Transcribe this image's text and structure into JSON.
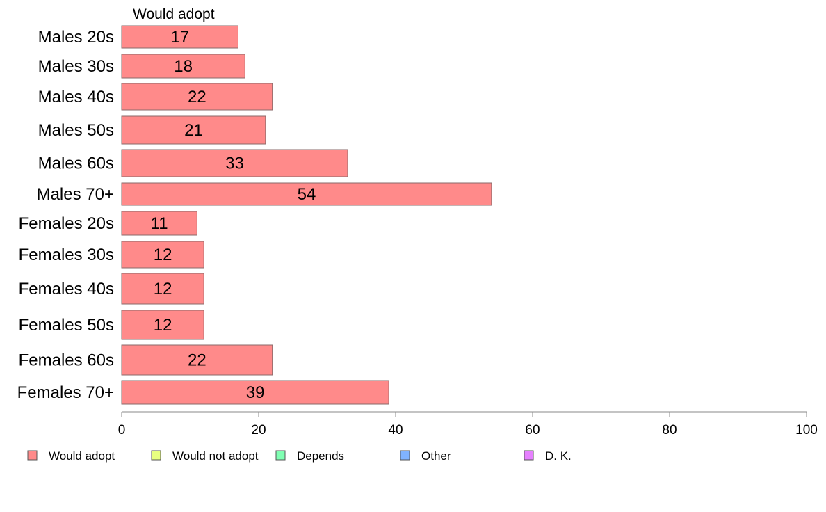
{
  "chart_data": {
    "type": "bar",
    "orientation": "horizontal",
    "title": "",
    "xlabel": "",
    "ylabel": "",
    "xlim": [
      0,
      100
    ],
    "xticks": [
      0,
      20,
      40,
      60,
      80,
      100
    ],
    "grid": false,
    "legend_position": "bottom",
    "series_header": "Would adopt",
    "categories": [
      "Males 20s",
      "Males 30s",
      "Males 40s",
      "Males 50s",
      "Males 60s",
      "Males 70+",
      "Females 20s",
      "Females 30s",
      "Females 40s",
      "Females 50s",
      "Females 60s",
      "Females 70+"
    ],
    "series": [
      {
        "name": "Would adopt",
        "color": "#ff8a8a",
        "values": [
          17,
          18,
          22,
          21,
          33,
          54,
          11,
          12,
          12,
          12,
          22,
          39
        ]
      }
    ],
    "legend": [
      {
        "label": "Would adopt",
        "color": "#ff8a8a"
      },
      {
        "label": "Would not adopt",
        "color": "#e8ff80"
      },
      {
        "label": "Depends",
        "color": "#80ffb3"
      },
      {
        "label": "Other",
        "color": "#80b3ff"
      },
      {
        "label": "D. K.",
        "color": "#e680ff"
      }
    ]
  }
}
